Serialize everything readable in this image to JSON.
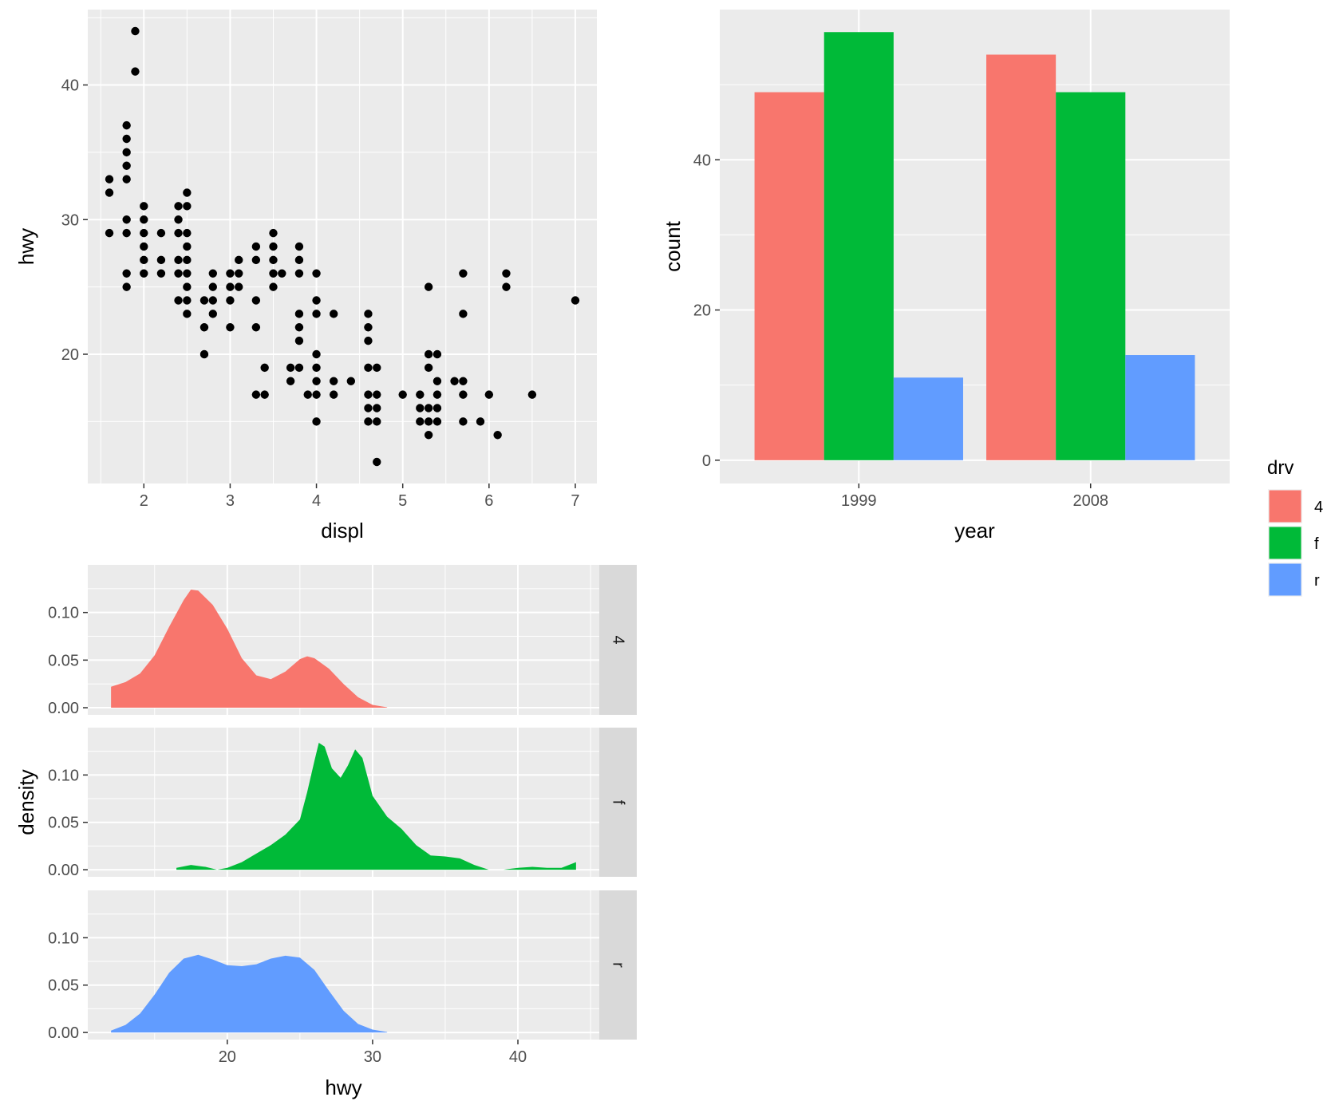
{
  "chart_data": [
    {
      "type": "scatter",
      "xlabel": "displ",
      "ylabel": "hwy",
      "xlim": [
        1.35,
        7.25
      ],
      "ylim": [
        10.4,
        45.6
      ],
      "xticks": [
        2,
        3,
        4,
        5,
        6,
        7
      ],
      "yticks": [
        20,
        30,
        40
      ],
      "grid": true,
      "point_color": "#000000",
      "points": [
        [
          1.6,
          33
        ],
        [
          1.6,
          32
        ],
        [
          1.6,
          29
        ],
        [
          1.8,
          37
        ],
        [
          1.8,
          36
        ],
        [
          1.8,
          35
        ],
        [
          1.8,
          34
        ],
        [
          1.8,
          33
        ],
        [
          1.8,
          30
        ],
        [
          1.8,
          29
        ],
        [
          1.8,
          26
        ],
        [
          1.8,
          25
        ],
        [
          1.9,
          44
        ],
        [
          1.9,
          41
        ],
        [
          2,
          31
        ],
        [
          2,
          30
        ],
        [
          2,
          29
        ],
        [
          2,
          28
        ],
        [
          2,
          27
        ],
        [
          2,
          26
        ],
        [
          2.2,
          29
        ],
        [
          2.2,
          27
        ],
        [
          2.2,
          26
        ],
        [
          2.4,
          31
        ],
        [
          2.4,
          30
        ],
        [
          2.4,
          29
        ],
        [
          2.4,
          27
        ],
        [
          2.4,
          26
        ],
        [
          2.4,
          24
        ],
        [
          2.5,
          32
        ],
        [
          2.5,
          31
        ],
        [
          2.5,
          29
        ],
        [
          2.5,
          28
        ],
        [
          2.5,
          27
        ],
        [
          2.5,
          26
        ],
        [
          2.5,
          25
        ],
        [
          2.5,
          24
        ],
        [
          2.5,
          23
        ],
        [
          2.7,
          24
        ],
        [
          2.7,
          22
        ],
        [
          2.7,
          20
        ],
        [
          2.8,
          26
        ],
        [
          2.8,
          25
        ],
        [
          2.8,
          24
        ],
        [
          2.8,
          23
        ],
        [
          3,
          26
        ],
        [
          3,
          25
        ],
        [
          3,
          24
        ],
        [
          3,
          22
        ],
        [
          3.1,
          27
        ],
        [
          3.1,
          26
        ],
        [
          3.1,
          25
        ],
        [
          3.3,
          28
        ],
        [
          3.3,
          27
        ],
        [
          3.3,
          24
        ],
        [
          3.3,
          22
        ],
        [
          3.3,
          17
        ],
        [
          3.4,
          19
        ],
        [
          3.4,
          17
        ],
        [
          3.5,
          29
        ],
        [
          3.5,
          28
        ],
        [
          3.5,
          27
        ],
        [
          3.5,
          26
        ],
        [
          3.5,
          25
        ],
        [
          3.6,
          26
        ],
        [
          3.7,
          19
        ],
        [
          3.7,
          18
        ],
        [
          3.8,
          28
        ],
        [
          3.8,
          27
        ],
        [
          3.8,
          26
        ],
        [
          3.8,
          23
        ],
        [
          3.8,
          22
        ],
        [
          3.8,
          21
        ],
        [
          3.8,
          19
        ],
        [
          3.9,
          17
        ],
        [
          4,
          26
        ],
        [
          4,
          24
        ],
        [
          4,
          23
        ],
        [
          4,
          20
        ],
        [
          4,
          19
        ],
        [
          4,
          18
        ],
        [
          4,
          17
        ],
        [
          4,
          15
        ],
        [
          4.2,
          23
        ],
        [
          4.2,
          18
        ],
        [
          4.2,
          17
        ],
        [
          4.4,
          18
        ],
        [
          4.6,
          23
        ],
        [
          4.6,
          22
        ],
        [
          4.6,
          21
        ],
        [
          4.6,
          19
        ],
        [
          4.6,
          17
        ],
        [
          4.6,
          16
        ],
        [
          4.6,
          15
        ],
        [
          4.7,
          19
        ],
        [
          4.7,
          17
        ],
        [
          4.7,
          16
        ],
        [
          4.7,
          15
        ],
        [
          4.7,
          12
        ],
        [
          5,
          17
        ],
        [
          5.2,
          17
        ],
        [
          5.2,
          16
        ],
        [
          5.2,
          15
        ],
        [
          5.3,
          25
        ],
        [
          5.3,
          20
        ],
        [
          5.3,
          19
        ],
        [
          5.3,
          16
        ],
        [
          5.3,
          15
        ],
        [
          5.3,
          14
        ],
        [
          5.4,
          20
        ],
        [
          5.4,
          18
        ],
        [
          5.4,
          17
        ],
        [
          5.4,
          16
        ],
        [
          5.4,
          15
        ],
        [
          5.6,
          18
        ],
        [
          5.7,
          26
        ],
        [
          5.7,
          23
        ],
        [
          5.7,
          18
        ],
        [
          5.7,
          17
        ],
        [
          5.7,
          15
        ],
        [
          5.9,
          15
        ],
        [
          6,
          17
        ],
        [
          6.1,
          14
        ],
        [
          6.2,
          26
        ],
        [
          6.2,
          25
        ],
        [
          6.5,
          17
        ],
        [
          7,
          24
        ]
      ]
    },
    {
      "type": "bar",
      "xlabel": "year",
      "ylabel": "count",
      "categories": [
        "1999",
        "2008"
      ],
      "ylim": [
        -3.1,
        60
      ],
      "yticks": [
        0,
        20,
        40
      ],
      "grid": true,
      "series": [
        {
          "name": "4",
          "color": "#F8766D",
          "values": [
            49,
            54
          ]
        },
        {
          "name": "f",
          "color": "#00BA38",
          "values": [
            57,
            49
          ]
        },
        {
          "name": "r",
          "color": "#619CFF",
          "values": [
            11,
            14
          ]
        }
      ],
      "legend": {
        "title": "drv",
        "position": "right"
      }
    },
    {
      "type": "area",
      "xlabel": "hwy",
      "ylabel": "density",
      "xlim": [
        10.4,
        45.6
      ],
      "ylim": [
        -0.0075,
        0.15
      ],
      "xticks": [
        20,
        30,
        40
      ],
      "yticks": [
        0.0,
        0.05,
        0.1
      ],
      "ytick_labels": [
        "0.00",
        "0.05",
        "0.10"
      ],
      "grid": true,
      "facets": [
        {
          "label": "4",
          "color": "#F8766D",
          "points": [
            [
              12,
              0.022
            ],
            [
              13,
              0.027
            ],
            [
              14,
              0.036
            ],
            [
              15,
              0.055
            ],
            [
              16,
              0.085
            ],
            [
              17,
              0.113
            ],
            [
              17.5,
              0.124
            ],
            [
              18,
              0.123
            ],
            [
              19,
              0.108
            ],
            [
              20,
              0.083
            ],
            [
              21,
              0.052
            ],
            [
              22,
              0.034
            ],
            [
              23,
              0.03
            ],
            [
              24,
              0.038
            ],
            [
              25,
              0.051
            ],
            [
              25.5,
              0.054
            ],
            [
              26,
              0.052
            ],
            [
              27,
              0.041
            ],
            [
              28,
              0.025
            ],
            [
              29,
              0.011
            ],
            [
              30,
              0.003
            ],
            [
              31,
              0.0005
            ]
          ]
        },
        {
          "label": "f",
          "color": "#00BA38",
          "points": [
            [
              16.5,
              0.002
            ],
            [
              17.5,
              0.005
            ],
            [
              18.5,
              0.003
            ],
            [
              19.3,
              0.0
            ],
            [
              20,
              0.002
            ],
            [
              21,
              0.008
            ],
            [
              22,
              0.017
            ],
            [
              23,
              0.026
            ],
            [
              24,
              0.037
            ],
            [
              25,
              0.053
            ],
            [
              25.5,
              0.082
            ],
            [
              26,
              0.115
            ],
            [
              26.3,
              0.134
            ],
            [
              26.7,
              0.13
            ],
            [
              27.2,
              0.107
            ],
            [
              27.8,
              0.097
            ],
            [
              28.3,
              0.11
            ],
            [
              28.8,
              0.127
            ],
            [
              29.3,
              0.118
            ],
            [
              30,
              0.078
            ],
            [
              31,
              0.056
            ],
            [
              32,
              0.043
            ],
            [
              33,
              0.026
            ],
            [
              34,
              0.015
            ],
            [
              35,
              0.014
            ],
            [
              36,
              0.012
            ],
            [
              37,
              0.005
            ],
            [
              38,
              0.0
            ],
            [
              39,
              0.0
            ],
            [
              40,
              0.002
            ],
            [
              41,
              0.003
            ],
            [
              42,
              0.002
            ],
            [
              43,
              0.002
            ],
            [
              44,
              0.008
            ]
          ]
        },
        {
          "label": "r",
          "color": "#619CFF",
          "points": [
            [
              12,
              0.002
            ],
            [
              13,
              0.008
            ],
            [
              14,
              0.02
            ],
            [
              15,
              0.04
            ],
            [
              16,
              0.063
            ],
            [
              17,
              0.078
            ],
            [
              18,
              0.082
            ],
            [
              19,
              0.077
            ],
            [
              20,
              0.071
            ],
            [
              21,
              0.07
            ],
            [
              22,
              0.072
            ],
            [
              23,
              0.078
            ],
            [
              24,
              0.081
            ],
            [
              25,
              0.079
            ],
            [
              26,
              0.066
            ],
            [
              27,
              0.044
            ],
            [
              28,
              0.023
            ],
            [
              29,
              0.009
            ],
            [
              30,
              0.003
            ],
            [
              31,
              0.0005
            ]
          ]
        }
      ]
    }
  ]
}
